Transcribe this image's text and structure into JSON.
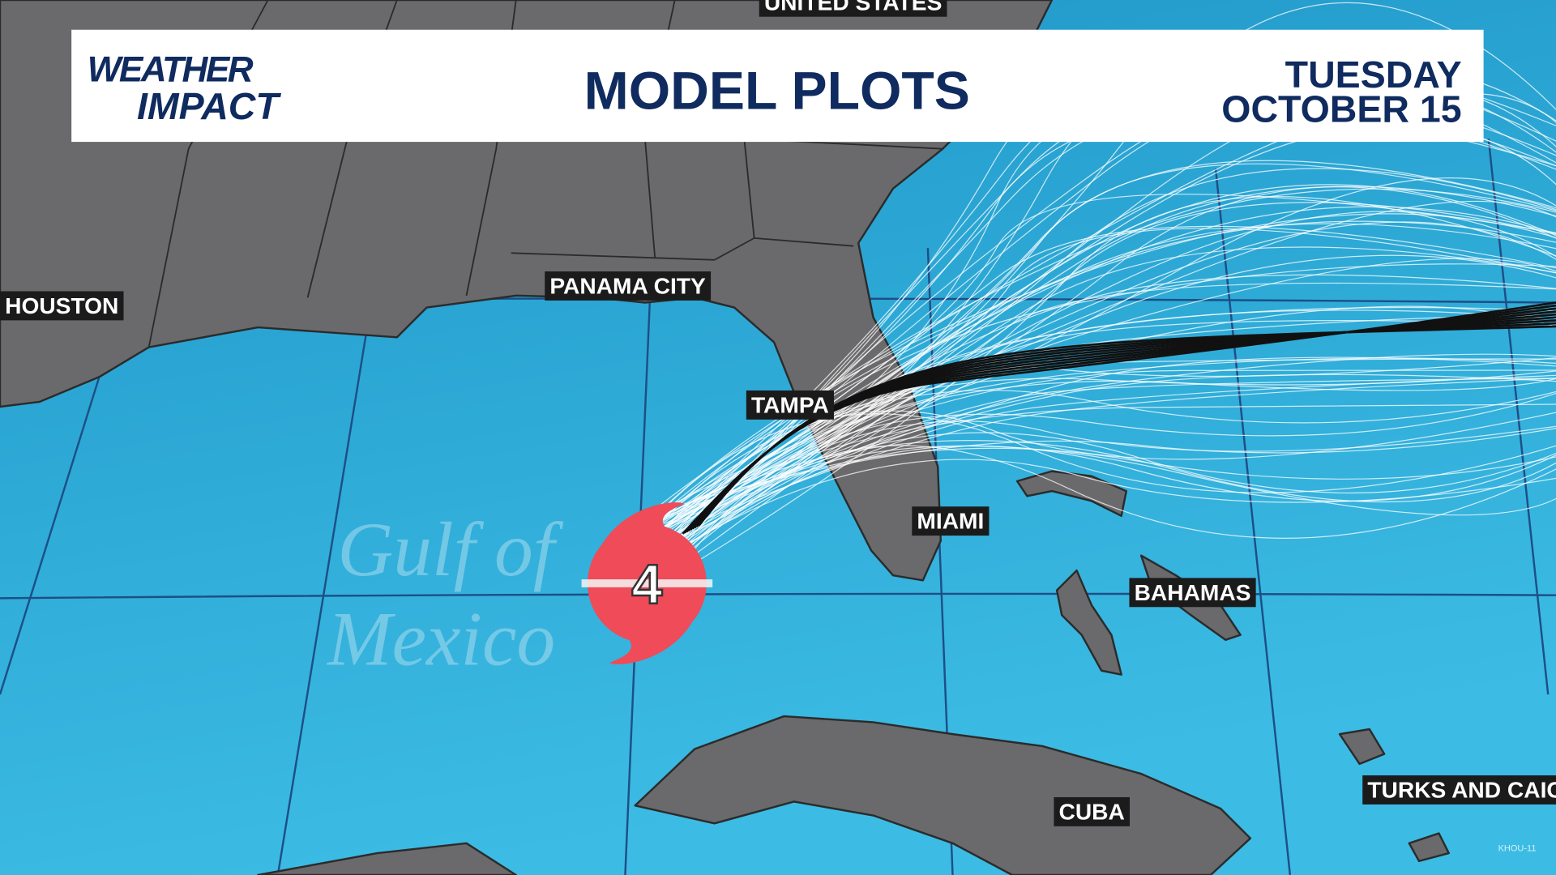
{
  "header": {
    "brand": [
      "WEATHER",
      "IMPACT"
    ],
    "title": "MODEL PLOTS",
    "date": [
      "TUESDAY",
      "OCTOBER 15"
    ]
  },
  "map": {
    "labels": [
      {
        "text": "UNITED STATES"
      },
      {
        "text": "HOUSTON"
      },
      {
        "text": "PANAMA CITY"
      },
      {
        "text": "TAMPA"
      },
      {
        "text": "MIAMI"
      },
      {
        "text": "BAHAMAS"
      },
      {
        "text": "CUBA"
      },
      {
        "text": "TURKS AND CAICOS"
      }
    ],
    "water_label": [
      "Gulf of",
      "Mexico"
    ],
    "storm": {
      "category": "4"
    },
    "credit": "KHOU-11"
  }
}
